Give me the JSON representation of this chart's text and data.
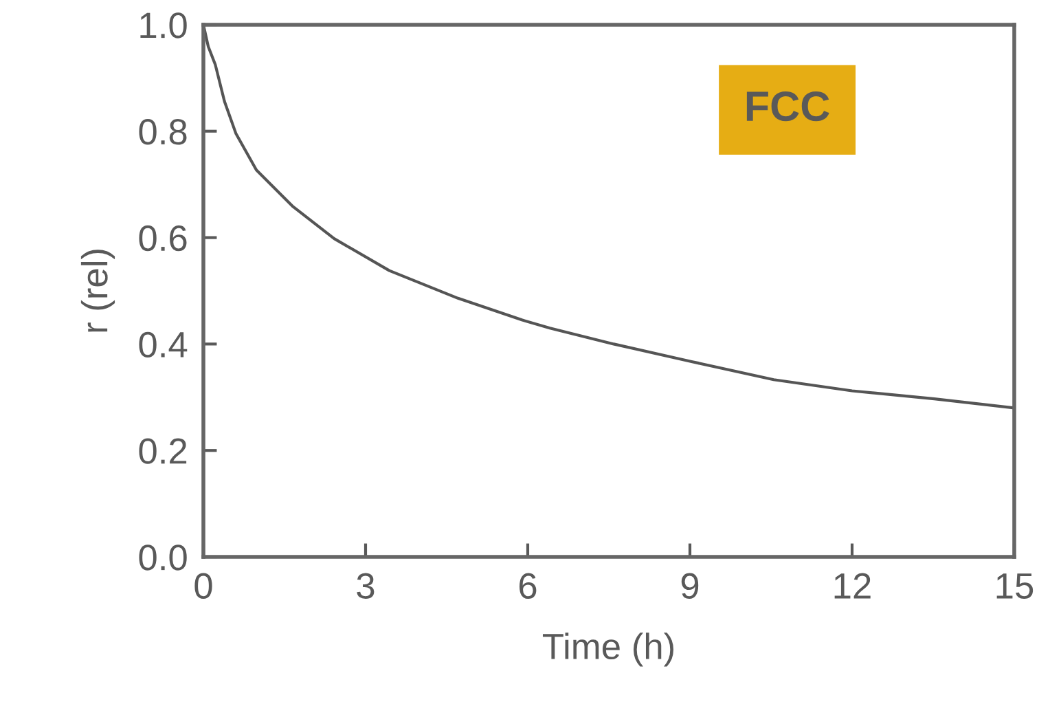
{
  "chart_data": {
    "type": "line",
    "xlabel": "Time (h)",
    "ylabel": "r (rel)",
    "x": [
      0,
      0.09,
      0.22,
      0.39,
      0.6,
      0.98,
      1.66,
      2.42,
      3.44,
      4.71,
      5.9,
      6.41,
      7.59,
      9.03,
      10.55,
      12.0,
      13.52,
      15.0
    ],
    "series": [
      {
        "color": "#555555",
        "values": [
          1.0,
          0.959,
          0.925,
          0.856,
          0.796,
          0.727,
          0.658,
          0.598,
          0.538,
          0.486,
          0.445,
          0.43,
          0.4,
          0.367,
          0.333,
          0.312,
          0.297,
          0.28
        ]
      }
    ],
    "xlim": [
      0,
      15
    ],
    "xticks": [
      0,
      3,
      6,
      9,
      12,
      15
    ],
    "ylim": [
      0,
      1.0
    ],
    "yticks": [
      {
        "value": 0,
        "label": "0.0"
      },
      {
        "value": 0.2,
        "label": "0.2"
      },
      {
        "value": 0.4,
        "label": "0.4"
      },
      {
        "value": 0.6,
        "label": "0.6"
      },
      {
        "value": 0.8,
        "label": "0.8"
      },
      {
        "value": 1.0,
        "label": "1.0"
      }
    ],
    "grid": false,
    "legend": false,
    "marker": "none",
    "line_style": "solid",
    "annotations": [
      "FCC"
    ]
  }
}
